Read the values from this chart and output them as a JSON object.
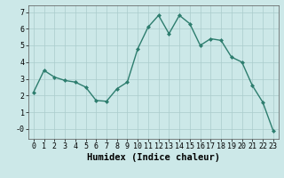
{
  "x": [
    0,
    1,
    2,
    3,
    4,
    5,
    6,
    7,
    8,
    9,
    10,
    11,
    12,
    13,
    14,
    15,
    16,
    17,
    18,
    19,
    20,
    21,
    22,
    23
  ],
  "y": [
    2.2,
    3.5,
    3.1,
    2.9,
    2.8,
    2.5,
    1.7,
    1.65,
    2.4,
    2.8,
    4.8,
    6.1,
    6.8,
    5.7,
    6.8,
    6.3,
    5.0,
    5.4,
    5.3,
    4.3,
    4.0,
    2.6,
    1.6,
    -0.1
  ],
  "line_color": "#2d7d6e",
  "marker": "D",
  "marker_size": 2.0,
  "bg_color": "#cce8e8",
  "grid_color": "#aacccc",
  "xlabel": "Humidex (Indice chaleur)",
  "ylim": [
    -0.6,
    7.4
  ],
  "xlim": [
    -0.5,
    23.5
  ],
  "yticks": [
    0,
    1,
    2,
    3,
    4,
    5,
    6,
    7
  ],
  "ytick_labels": [
    "-0",
    "1",
    "2",
    "3",
    "4",
    "5",
    "6",
    "7"
  ],
  "xticks": [
    0,
    1,
    2,
    3,
    4,
    5,
    6,
    7,
    8,
    9,
    10,
    11,
    12,
    13,
    14,
    15,
    16,
    17,
    18,
    19,
    20,
    21,
    22,
    23
  ],
  "xlabel_fontsize": 7.5,
  "tick_fontsize": 6.0,
  "line_width": 1.0
}
